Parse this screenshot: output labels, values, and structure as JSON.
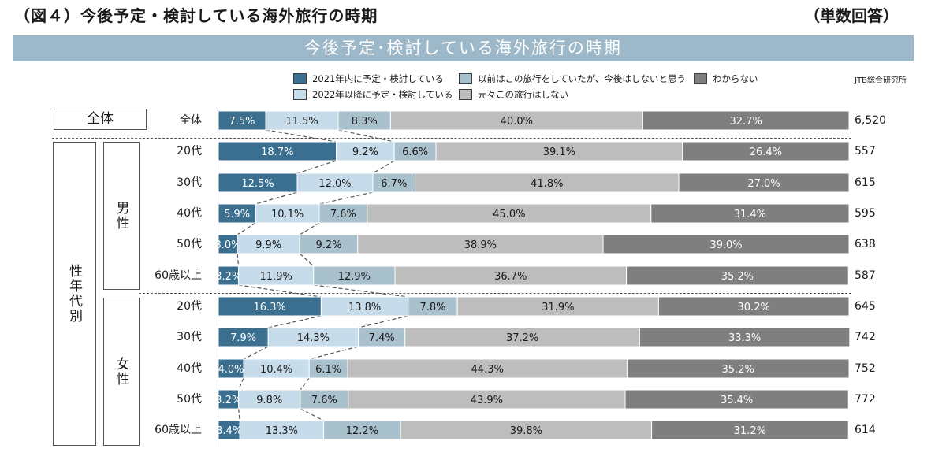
{
  "figure": {
    "title": "（図４）今後予定・検討している海外旅行の時期",
    "note": "（単数回答）",
    "banner": "今後予定･検討している海外旅行の時期",
    "source": "JTB総合研究所"
  },
  "groups": {
    "total": "全体",
    "by_gender_age": "性年代別",
    "male": "男性",
    "female": "女性"
  },
  "colors": {
    "s1": "#3a6f8f",
    "s2": "#c6dcea",
    "s3": "#a9c0cd",
    "s4": "#bdbdbd",
    "s5": "#7f7f7f"
  },
  "chart_data": {
    "type": "bar",
    "orientation": "horizontal",
    "stacked": true,
    "percent": true,
    "categories": [
      "全体",
      "20代",
      "30代",
      "40代",
      "50代",
      "60歳以上",
      "20代",
      "30代",
      "40代",
      "50代",
      "60歳以上"
    ],
    "n": [
      "6,520",
      "557",
      "615",
      "595",
      "638",
      "587",
      "645",
      "742",
      "752",
      "772",
      "614"
    ],
    "series": [
      {
        "name": "2021年内に予定・検討している",
        "values": [
          7.5,
          18.7,
          12.5,
          5.9,
          3.0,
          3.2,
          16.3,
          7.9,
          4.0,
          3.2,
          3.4
        ]
      },
      {
        "name": "2022年以降に予定・検討している",
        "values": [
          11.5,
          9.2,
          12.0,
          10.1,
          9.9,
          11.9,
          13.8,
          14.3,
          10.4,
          9.8,
          13.3
        ]
      },
      {
        "name": "以前はこの旅行をしていたが、今後はしないと思う",
        "values": [
          8.3,
          6.6,
          6.7,
          7.6,
          9.2,
          12.9,
          7.8,
          7.4,
          6.1,
          7.6,
          12.2
        ]
      },
      {
        "name": "元々この旅行はしない",
        "values": [
          40.0,
          39.1,
          41.8,
          45.0,
          38.9,
          36.7,
          31.9,
          37.2,
          44.3,
          43.9,
          39.8
        ]
      },
      {
        "name": "わからない",
        "values": [
          32.7,
          26.4,
          27.0,
          31.4,
          39.0,
          35.2,
          30.2,
          33.3,
          35.2,
          35.4,
          31.2
        ]
      }
    ]
  }
}
